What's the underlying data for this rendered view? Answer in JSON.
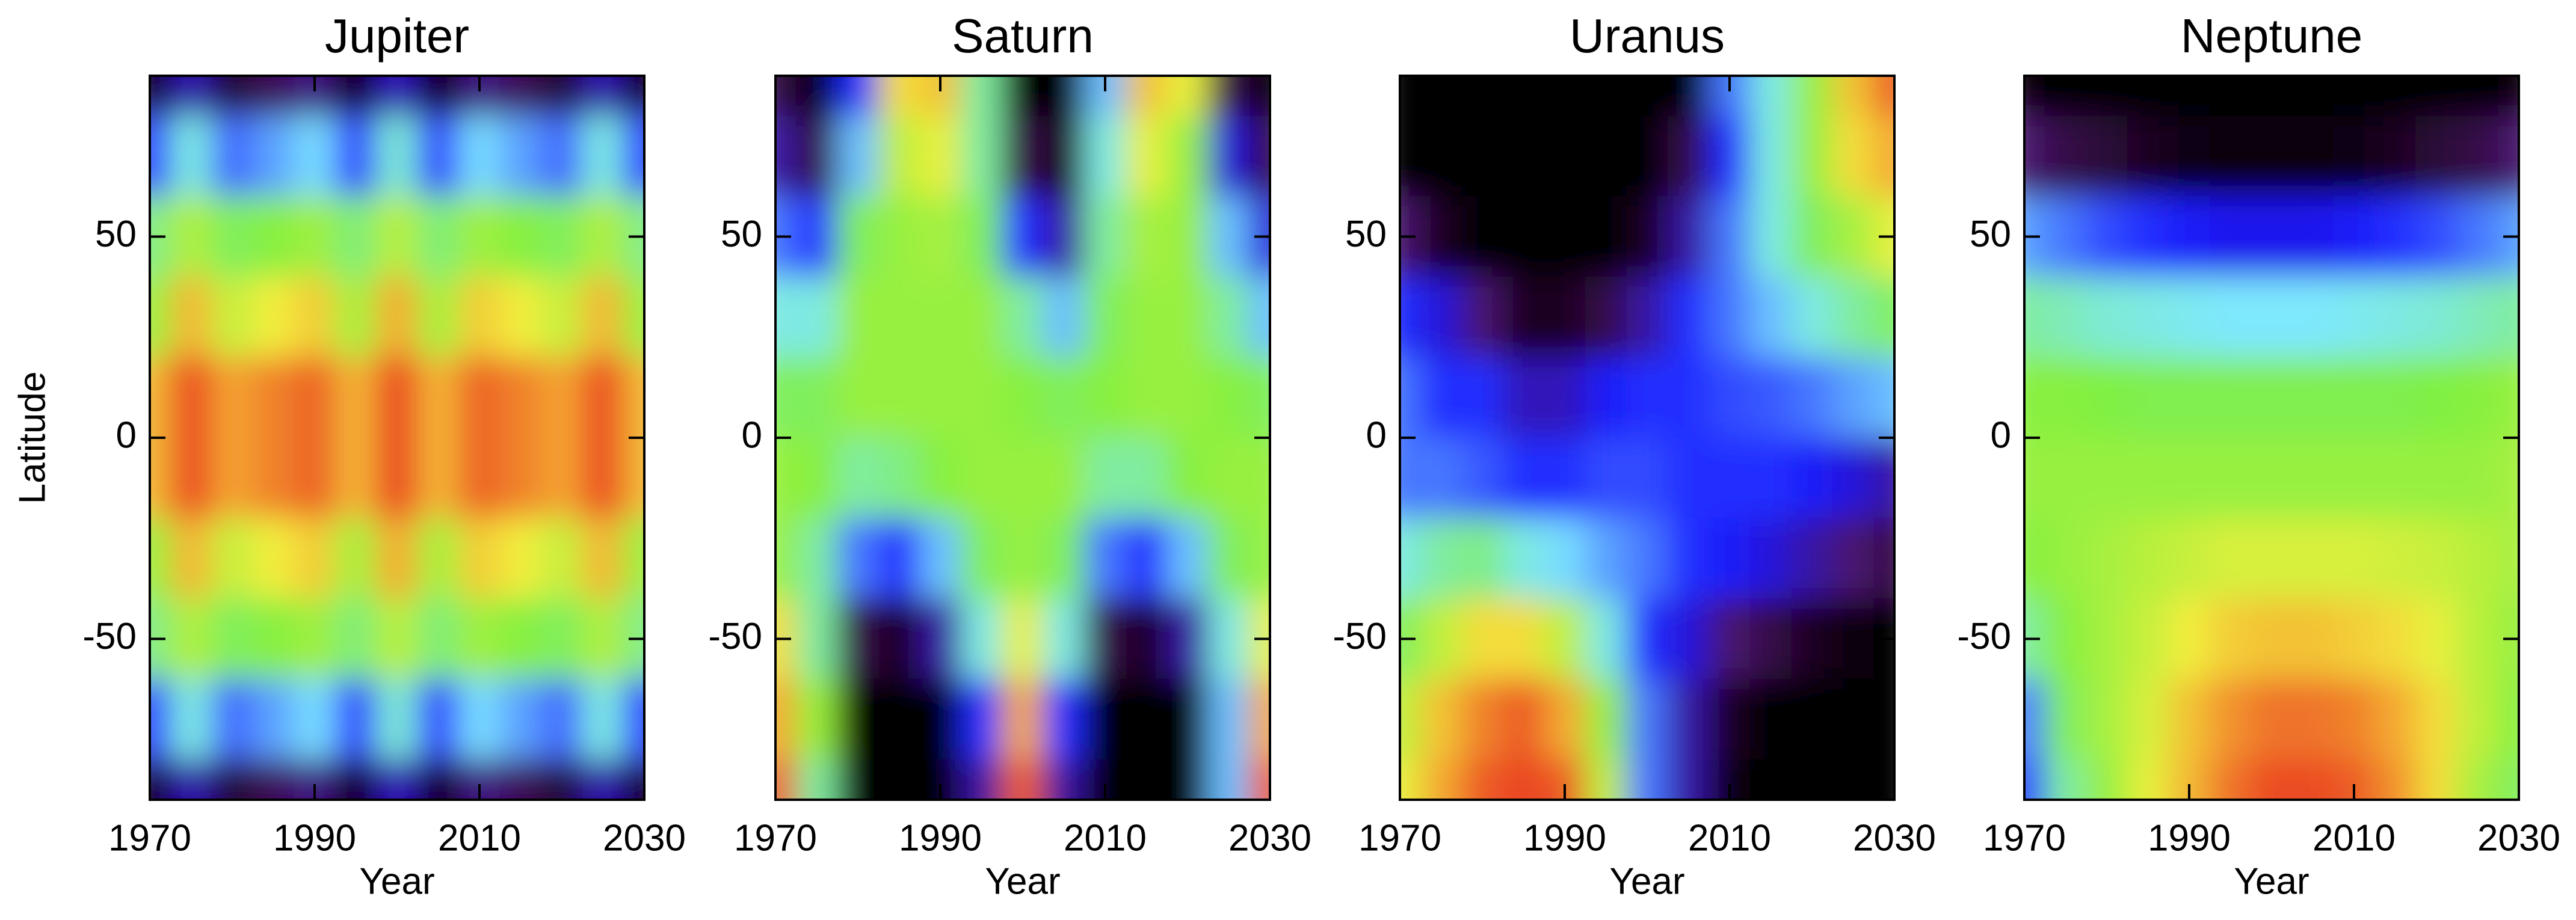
{
  "chart_data": [
    {
      "type": "heatmap",
      "title": "Jupiter",
      "xlabel": "Year",
      "ylabel": "Latitude",
      "x": [
        1970,
        1975,
        1980,
        1985,
        1990,
        1995,
        2000,
        2005,
        2010,
        2015,
        2020,
        2025,
        2030
      ],
      "y": [
        90,
        70,
        50,
        30,
        10,
        -10,
        -30,
        -50,
        -70,
        -90
      ],
      "values": [
        [
          0.02,
          0.21,
          0.07,
          0.12,
          0.17,
          0.03,
          0.22,
          0.03,
          0.17,
          0.12,
          0.07,
          0.21,
          0.02
        ],
        [
          0.3,
          0.45,
          0.34,
          0.38,
          0.42,
          0.31,
          0.46,
          0.31,
          0.42,
          0.38,
          0.34,
          0.45,
          0.3
        ],
        [
          0.52,
          0.63,
          0.55,
          0.58,
          0.61,
          0.53,
          0.64,
          0.53,
          0.61,
          0.58,
          0.55,
          0.63,
          0.52
        ],
        [
          0.6,
          0.82,
          0.66,
          0.72,
          0.78,
          0.62,
          0.84,
          0.62,
          0.78,
          0.72,
          0.66,
          0.82,
          0.6
        ],
        [
          0.82,
          0.97,
          0.86,
          0.9,
          0.94,
          0.83,
          0.98,
          0.83,
          0.94,
          0.9,
          0.86,
          0.97,
          0.82
        ],
        [
          0.82,
          0.97,
          0.86,
          0.9,
          0.94,
          0.83,
          0.98,
          0.83,
          0.94,
          0.9,
          0.86,
          0.97,
          0.82
        ],
        [
          0.6,
          0.82,
          0.66,
          0.72,
          0.78,
          0.62,
          0.84,
          0.62,
          0.78,
          0.72,
          0.66,
          0.82,
          0.6
        ],
        [
          0.52,
          0.63,
          0.55,
          0.58,
          0.61,
          0.53,
          0.64,
          0.53,
          0.61,
          0.58,
          0.55,
          0.63,
          0.52
        ],
        [
          0.3,
          0.45,
          0.34,
          0.38,
          0.42,
          0.31,
          0.46,
          0.31,
          0.42,
          0.38,
          0.34,
          0.45,
          0.3
        ],
        [
          0.02,
          0.21,
          0.07,
          0.12,
          0.17,
          0.03,
          0.22,
          0.03,
          0.17,
          0.12,
          0.07,
          0.21,
          0.02
        ]
      ],
      "xlim": [
        1970,
        2030
      ],
      "ylim": [
        -90,
        90
      ],
      "xticks": [
        1970,
        1990,
        2010,
        2030
      ],
      "yticks": [
        -50,
        0,
        50
      ],
      "colormap": [
        "#000000",
        "#4a1266",
        "#1a1aff",
        "#7ee8ff",
        "#80f040",
        "#f2f03c",
        "#f4a432",
        "#e8341e"
      ]
    },
    {
      "type": "heatmap",
      "title": "Saturn",
      "xlabel": "Year",
      "x": [
        1970,
        1975,
        1980,
        1985,
        1990,
        1995,
        2000,
        2005,
        2010,
        2015,
        2020,
        2025,
        2030
      ],
      "y": [
        90,
        70,
        50,
        30,
        10,
        -10,
        -30,
        -50,
        -70,
        -90
      ],
      "values": [
        [
          0.1,
          0.0,
          0.3,
          0.75,
          0.8,
          0.5,
          0.0,
          0.0,
          0.4,
          0.8,
          0.7,
          0.1,
          0.0
        ],
        [
          0.2,
          0.1,
          0.4,
          0.65,
          0.7,
          0.5,
          0.1,
          0.05,
          0.45,
          0.7,
          0.6,
          0.25,
          0.1
        ],
        [
          0.35,
          0.3,
          0.55,
          0.6,
          0.62,
          0.55,
          0.3,
          0.2,
          0.5,
          0.62,
          0.6,
          0.4,
          0.25
        ],
        [
          0.45,
          0.45,
          0.6,
          0.6,
          0.6,
          0.6,
          0.5,
          0.4,
          0.55,
          0.6,
          0.6,
          0.5,
          0.4
        ],
        [
          0.55,
          0.55,
          0.6,
          0.6,
          0.6,
          0.6,
          0.58,
          0.55,
          0.58,
          0.6,
          0.6,
          0.58,
          0.55
        ],
        [
          0.6,
          0.58,
          0.5,
          0.52,
          0.58,
          0.6,
          0.6,
          0.6,
          0.5,
          0.5,
          0.58,
          0.6,
          0.6
        ],
        [
          0.6,
          0.5,
          0.35,
          0.3,
          0.4,
          0.55,
          0.6,
          0.55,
          0.35,
          0.3,
          0.4,
          0.55,
          0.6
        ],
        [
          0.75,
          0.5,
          0.1,
          0.05,
          0.2,
          0.45,
          0.7,
          0.45,
          0.1,
          0.05,
          0.2,
          0.45,
          0.7
        ],
        [
          0.85,
          0.6,
          0.0,
          0.0,
          0.0,
          0.3,
          0.85,
          0.3,
          0.0,
          0.0,
          0.0,
          0.4,
          0.85
        ],
        [
          0.95,
          0.5,
          0.0,
          0.0,
          0.0,
          0.2,
          0.95,
          0.2,
          0.0,
          0.0,
          0.0,
          0.4,
          0.95
        ]
      ],
      "xlim": [
        1970,
        2030
      ],
      "ylim": [
        -90,
        90
      ],
      "xticks": [
        1970,
        1990,
        2010,
        2030
      ],
      "yticks": [
        -50,
        0,
        50
      ],
      "colormap": [
        "#000000",
        "#4a1266",
        "#1a1aff",
        "#7ee8ff",
        "#80f040",
        "#f2f03c",
        "#f4a432",
        "#e8341e"
      ]
    },
    {
      "type": "heatmap",
      "title": "Uranus",
      "xlabel": "Year",
      "x": [
        1970,
        1975,
        1980,
        1985,
        1990,
        1995,
        2000,
        2005,
        2010,
        2015,
        2020,
        2025,
        2030
      ],
      "y": [
        90,
        70,
        50,
        30,
        10,
        -10,
        -30,
        -50,
        -70,
        -90
      ],
      "values": [
        [
          0.0,
          0.0,
          0.0,
          0.0,
          0.0,
          0.0,
          0.0,
          0.0,
          0.35,
          0.45,
          0.6,
          0.8,
          0.95
        ],
        [
          0.0,
          0.0,
          0.0,
          0.0,
          0.0,
          0.0,
          0.0,
          0.1,
          0.3,
          0.45,
          0.6,
          0.75,
          0.85
        ],
        [
          0.15,
          0.05,
          0.0,
          0.0,
          0.0,
          0.0,
          0.05,
          0.2,
          0.35,
          0.45,
          0.55,
          0.62,
          0.7
        ],
        [
          0.3,
          0.25,
          0.15,
          0.05,
          0.05,
          0.1,
          0.2,
          0.3,
          0.35,
          0.4,
          0.45,
          0.5,
          0.55
        ],
        [
          0.35,
          0.3,
          0.3,
          0.22,
          0.22,
          0.28,
          0.3,
          0.3,
          0.32,
          0.33,
          0.35,
          0.38,
          0.4
        ],
        [
          0.35,
          0.35,
          0.33,
          0.3,
          0.3,
          0.32,
          0.32,
          0.3,
          0.3,
          0.3,
          0.28,
          0.25,
          0.2
        ],
        [
          0.45,
          0.5,
          0.52,
          0.45,
          0.42,
          0.38,
          0.35,
          0.3,
          0.28,
          0.25,
          0.2,
          0.15,
          0.1
        ],
        [
          0.55,
          0.65,
          0.75,
          0.75,
          0.65,
          0.45,
          0.3,
          0.25,
          0.15,
          0.1,
          0.05,
          0.02,
          0.0
        ],
        [
          0.65,
          0.8,
          0.9,
          0.95,
          0.85,
          0.6,
          0.35,
          0.2,
          0.05,
          0.0,
          0.0,
          0.0,
          0.0
        ],
        [
          0.7,
          0.85,
          0.95,
          0.98,
          0.95,
          0.65,
          0.35,
          0.2,
          0.02,
          0.0,
          0.0,
          0.0,
          0.0
        ]
      ],
      "xlim": [
        1970,
        2030
      ],
      "ylim": [
        -90,
        90
      ],
      "xticks": [
        1970,
        1990,
        2010,
        2030
      ],
      "yticks": [
        -50,
        0,
        50
      ],
      "colormap": [
        "#000000",
        "#4a1266",
        "#1a1aff",
        "#7ee8ff",
        "#80f040",
        "#f2f03c",
        "#f4a432",
        "#e8341e"
      ]
    },
    {
      "type": "heatmap",
      "title": "Neptune",
      "xlabel": "Year",
      "x": [
        1970,
        1975,
        1980,
        1985,
        1990,
        1995,
        2000,
        2005,
        2010,
        2015,
        2020,
        2025,
        2030
      ],
      "y": [
        90,
        70,
        50,
        30,
        10,
        -10,
        -30,
        -50,
        -70,
        -90
      ],
      "values": [
        [
          0.02,
          0.0,
          0.0,
          0.0,
          0.0,
          0.0,
          0.0,
          0.0,
          0.0,
          0.0,
          0.0,
          0.0,
          0.02
        ],
        [
          0.15,
          0.1,
          0.08,
          0.05,
          0.03,
          0.02,
          0.02,
          0.02,
          0.03,
          0.05,
          0.08,
          0.1,
          0.15
        ],
        [
          0.38,
          0.35,
          0.32,
          0.3,
          0.28,
          0.27,
          0.27,
          0.27,
          0.28,
          0.3,
          0.32,
          0.35,
          0.38
        ],
        [
          0.5,
          0.48,
          0.46,
          0.45,
          0.44,
          0.43,
          0.43,
          0.43,
          0.44,
          0.45,
          0.46,
          0.48,
          0.5
        ],
        [
          0.58,
          0.58,
          0.57,
          0.56,
          0.56,
          0.56,
          0.56,
          0.56,
          0.56,
          0.56,
          0.57,
          0.58,
          0.6
        ],
        [
          0.6,
          0.6,
          0.6,
          0.6,
          0.6,
          0.6,
          0.6,
          0.6,
          0.6,
          0.6,
          0.6,
          0.6,
          0.62
        ],
        [
          0.58,
          0.6,
          0.62,
          0.64,
          0.66,
          0.68,
          0.68,
          0.68,
          0.68,
          0.67,
          0.66,
          0.64,
          0.62
        ],
        [
          0.5,
          0.58,
          0.62,
          0.66,
          0.72,
          0.78,
          0.8,
          0.8,
          0.78,
          0.75,
          0.7,
          0.64,
          0.6
        ],
        [
          0.35,
          0.55,
          0.62,
          0.68,
          0.8,
          0.88,
          0.92,
          0.92,
          0.9,
          0.85,
          0.75,
          0.65,
          0.58
        ],
        [
          0.3,
          0.5,
          0.6,
          0.7,
          0.82,
          0.92,
          0.97,
          0.97,
          0.95,
          0.88,
          0.75,
          0.62,
          0.55
        ]
      ],
      "xlim": [
        1970,
        2030
      ],
      "ylim": [
        -90,
        90
      ],
      "xticks": [
        1970,
        1990,
        2010,
        2030
      ],
      "yticks": [
        -50,
        0,
        50
      ],
      "colormap": [
        "#000000",
        "#4a1266",
        "#1a1aff",
        "#7ee8ff",
        "#80f040",
        "#f2f03c",
        "#f4a432",
        "#e8341e"
      ]
    }
  ]
}
